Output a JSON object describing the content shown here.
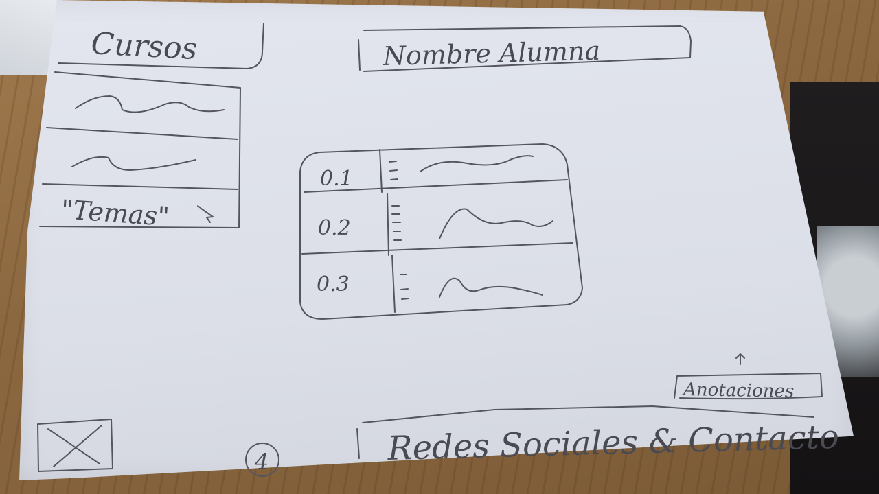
{
  "sidebar": {
    "title": "Cursos",
    "temas_label": "\"Temas\""
  },
  "header": {
    "student_name": "Nombre Alumna"
  },
  "content_table": {
    "rows": [
      {
        "number": "0.1"
      },
      {
        "number": "0.2"
      },
      {
        "number": "0.3"
      }
    ]
  },
  "annotations_label": "Anotaciones",
  "page_number": "4",
  "footer": {
    "social_contact": "Redes Sociales & Contacto"
  },
  "colors": {
    "paper": "#dcdfe8",
    "pencil": "#4a4a52",
    "table": "#8a6a45"
  }
}
